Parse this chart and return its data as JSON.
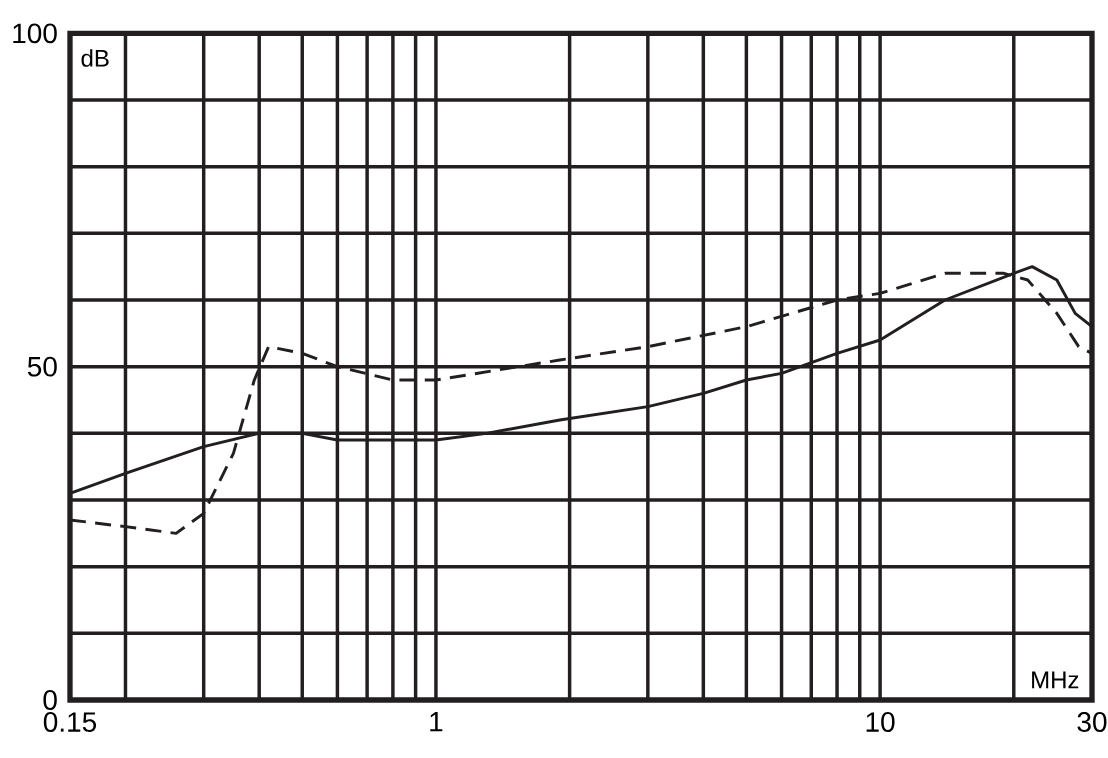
{
  "chart_data": {
    "type": "line",
    "xlabel": "MHz",
    "ylabel": "dB",
    "log": "x",
    "grid": true,
    "xlim": [
      0.15,
      30
    ],
    "ylim": [
      0,
      100
    ],
    "xticks": [
      0.15,
      {
        "value": 0.2,
        "label": null
      },
      {
        "value": 0.3,
        "label": null
      },
      {
        "value": 0.4,
        "label": null
      },
      {
        "value": 0.5,
        "label": null
      },
      {
        "value": 0.6,
        "label": null
      },
      {
        "value": 0.7,
        "label": null
      },
      {
        "value": 0.8,
        "label": null
      },
      {
        "value": 0.9,
        "label": null
      },
      1,
      {
        "value": 2,
        "label": null
      },
      {
        "value": 3,
        "label": null
      },
      {
        "value": 4,
        "label": null
      },
      {
        "value": 5,
        "label": null
      },
      {
        "value": 6,
        "label": null
      },
      {
        "value": 7,
        "label": null
      },
      {
        "value": 8,
        "label": null
      },
      {
        "value": 9,
        "label": null
      },
      10,
      {
        "value": 20,
        "label": null
      },
      30
    ],
    "yticks": [
      0,
      {
        "value": 10,
        "label": null
      },
      {
        "value": 20,
        "label": null
      },
      {
        "value": 30,
        "label": null
      },
      {
        "value": 40,
        "label": null
      },
      50,
      {
        "value": 60,
        "label": null
      },
      {
        "value": 70,
        "label": null
      },
      {
        "value": 80,
        "label": null
      },
      {
        "value": 90,
        "label": null
      },
      100
    ],
    "series": [
      {
        "color": "#231f20",
        "line_style": "solid",
        "x": [
          0.15,
          0.2,
          0.3,
          0.4,
          0.5,
          0.6,
          0.7,
          0.8,
          0.9,
          1,
          1.3,
          1.9,
          3,
          4,
          5,
          6,
          8,
          10,
          14,
          20,
          22,
          25,
          27.5,
          30
        ],
        "values": [
          31,
          34,
          38,
          40,
          40,
          39,
          39,
          39,
          39,
          39,
          40,
          42,
          44,
          46,
          48,
          49,
          52,
          54,
          60,
          64,
          65,
          63,
          58,
          56
        ]
      },
      {
        "color": "#231f20",
        "line_style": "dashed",
        "x": [
          0.15,
          0.2,
          0.26,
          0.3,
          0.35,
          0.39,
          0.42,
          0.5,
          0.6,
          0.8,
          1,
          1.9,
          3,
          5,
          8,
          10,
          14,
          19,
          21.5,
          25,
          28,
          30
        ],
        "values": [
          27,
          26,
          25,
          28,
          37,
          48,
          53,
          52,
          50,
          48,
          48,
          51,
          53,
          56,
          60,
          61,
          64,
          64,
          63,
          58,
          53,
          52
        ]
      }
    ]
  }
}
